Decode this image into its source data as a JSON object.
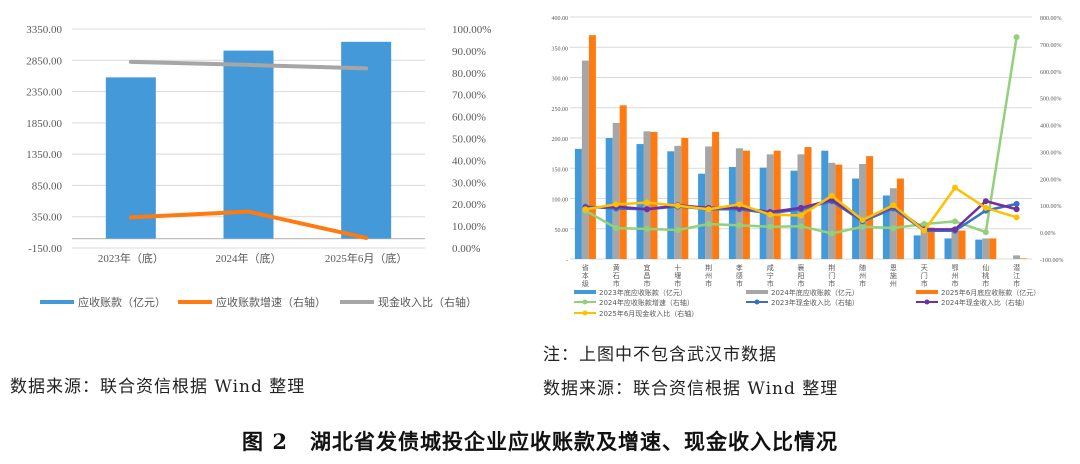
{
  "chart_data": [
    {
      "type": "bar",
      "combo": "bar+line",
      "categories": [
        "2023年（底）",
        "2024年（底）",
        "2025年6月（底）"
      ],
      "series": [
        {
          "name": "应收账款（亿元）",
          "type": "bar",
          "axis": "left",
          "color": "#4499d9",
          "values": [
            2577,
            3005,
            3145
          ]
        },
        {
          "name": "应收账款增速（右轴）",
          "type": "line",
          "axis": "right",
          "color": "#ff7a10",
          "values": [
            14.0,
            16.6,
            4.6
          ]
        },
        {
          "name": "现金收入比（右轴）",
          "type": "line",
          "axis": "right",
          "color": "#a6a6a6",
          "values": [
            85.0,
            83.6,
            82.0
          ]
        }
      ],
      "left_axis": {
        "ticks": [
          "3350.00",
          "2850.00",
          "2350.00",
          "1850.00",
          "1350.00",
          "850.00",
          "350.00",
          "-150.00"
        ],
        "ylim": [
          -150,
          3350
        ]
      },
      "right_axis": {
        "ticks": [
          "100.00%",
          "90.00%",
          "80.00%",
          "70.00%",
          "60.00%",
          "50.00%",
          "40.00%",
          "30.00%",
          "20.00%",
          "10.00%",
          "0.00%"
        ],
        "ylim": [
          0,
          100
        ]
      },
      "grid": true,
      "legend_position": "bottom"
    },
    {
      "type": "bar",
      "combo": "bar+line",
      "categories": [
        "省本级",
        "黄石市",
        "宜昌市",
        "十堰市",
        "荆州市",
        "孝感市",
        "咸宁市",
        "襄阳市",
        "荆门市",
        "随州市",
        "恩施州",
        "天门市",
        "鄂州市",
        "仙桃市",
        "潜江市"
      ],
      "series": [
        {
          "name": "2023年底应收账款（亿元）",
          "type": "bar",
          "axis": "left",
          "color": "#4499d9",
          "values": [
            182,
            200,
            190,
            178,
            141,
            152,
            151,
            146,
            179,
            133,
            105,
            39,
            34,
            32,
            0
          ]
        },
        {
          "name": "2024年底应收账款（亿元）",
          "type": "bar",
          "axis": "left",
          "color": "#a6a6a6",
          "values": [
            328,
            225,
            211,
            187,
            186,
            183,
            173,
            173,
            159,
            157,
            117,
            52,
            52,
            34,
            6
          ]
        },
        {
          "name": "2025年6月底应收账款（亿元）",
          "type": "bar",
          "axis": "left",
          "color": "#ff7a10",
          "values": [
            370,
            254,
            210,
            200,
            210,
            179,
            179,
            185,
            156,
            170,
            133,
            52,
            47,
            34,
            1
          ]
        },
        {
          "name": "2024年应收账款增速（右轴）",
          "type": "line",
          "axis": "right",
          "color": "#92d07c",
          "values": [
            80,
            15,
            12,
            8,
            30,
            25,
            20,
            22,
            -5,
            20,
            15,
            30,
            40,
            0,
            725
          ]
        },
        {
          "name": "2023年现金收入比（右轴）",
          "type": "line",
          "axis": "right",
          "color": "#3a6fc8",
          "values": [
            95,
            88,
            85,
            95,
            85,
            85,
            70,
            85,
            115,
            40,
            88,
            5,
            5,
            80,
            105
          ]
        },
        {
          "name": "2024年现金收入比（右轴）",
          "type": "line",
          "axis": "right",
          "color": "#7030a0",
          "values": [
            90,
            95,
            85,
            100,
            90,
            90,
            75,
            90,
            120,
            45,
            95,
            10,
            10,
            115,
            85
          ]
        },
        {
          "name": "2025年6月现金收入比（右轴）",
          "type": "line",
          "axis": "right",
          "color": "#ffc000",
          "values": [
            85,
            103,
            110,
            98,
            85,
            103,
            65,
            62,
            135,
            45,
            100,
            5,
            165,
            90,
            55
          ]
        }
      ],
      "left_axis": {
        "ticks": [
          "400.00",
          "350.00",
          "300.00",
          "250.00",
          "200.00",
          "150.00",
          "100.00",
          "50.00",
          "-"
        ],
        "ylim": [
          0,
          400
        ]
      },
      "right_axis": {
        "ticks": [
          "800.00%",
          "700.00%",
          "600.00%",
          "500.00%",
          "400.00%",
          "300.00%",
          "200.00%",
          "100.00%",
          "0.00%",
          "-100.00%"
        ],
        "ylim": [
          -100,
          800
        ]
      },
      "grid": true,
      "legend_position": "bottom"
    }
  ],
  "left_panel": {
    "legend": [
      "应收账款（亿元）",
      "应收账款增速（右轴）",
      "现金收入比（右轴）"
    ],
    "source": "数据来源：联合资信根据 Wind 整理"
  },
  "right_panel": {
    "legend": [
      "2023年底应收账款（亿元）",
      "2024年底应收账款（亿元）",
      "2025年6月底应收账款（亿元）",
      "2024年应收账款增速（右轴）",
      "2023年现金收入比（右轴）",
      "2024年现金收入比（右轴）",
      "2025年6月现金收入比（右轴）"
    ],
    "note": "注：上图中不包含武汉市数据",
    "source": "数据来源：联合资信根据 Wind 整理"
  },
  "caption": "图 2　湖北省发债城投企业应收账款及增速、现金收入比情况"
}
